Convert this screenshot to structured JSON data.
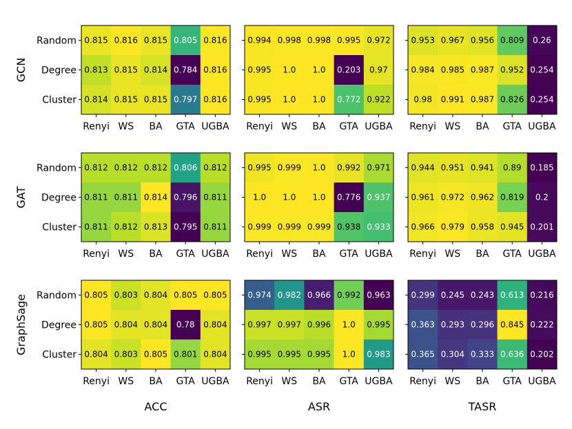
{
  "chart_data": {
    "type": "heatmap",
    "row_groups": [
      "GCN",
      "GAT",
      "GraphSage"
    ],
    "col_groups": [
      "ACC",
      "ASR",
      "TASR"
    ],
    "row_labels": [
      "Random",
      "Degree",
      "Cluster"
    ],
    "col_labels": [
      "Renyi",
      "WS",
      "BA",
      "GTA",
      "UGBA"
    ],
    "colormap": "viridis",
    "grid": false,
    "panels": [
      {
        "model": "GCN",
        "metric": "ACC",
        "values": [
          [
            "0.815",
            "0.816",
            "0.815",
            "0.805",
            "0.816"
          ],
          [
            "0.813",
            "0.815",
            "0.814",
            "0.784",
            "0.816"
          ],
          [
            "0.814",
            "0.815",
            "0.815",
            "0.797",
            "0.816"
          ]
        ]
      },
      {
        "model": "GCN",
        "metric": "ASR",
        "values": [
          [
            "0.994",
            "0.998",
            "0.998",
            "0.995",
            "0.972"
          ],
          [
            "0.995",
            "1.0",
            "1.0",
            "0.203",
            "0.97"
          ],
          [
            "0.995",
            "1.0",
            "1.0",
            "0.772",
            "0.922"
          ]
        ]
      },
      {
        "model": "GCN",
        "metric": "TASR",
        "values": [
          [
            "0.953",
            "0.967",
            "0.956",
            "0.809",
            "0.26"
          ],
          [
            "0.984",
            "0.985",
            "0.987",
            "0.952",
            "0.254"
          ],
          [
            "0.98",
            "0.991",
            "0.987",
            "0.826",
            "0.254"
          ]
        ]
      },
      {
        "model": "GAT",
        "metric": "ACC",
        "values": [
          [
            "0.812",
            "0.812",
            "0.812",
            "0.806",
            "0.812"
          ],
          [
            "0.811",
            "0.811",
            "0.814",
            "0.796",
            "0.811"
          ],
          [
            "0.811",
            "0.812",
            "0.813",
            "0.795",
            "0.811"
          ]
        ]
      },
      {
        "model": "GAT",
        "metric": "ASR",
        "values": [
          [
            "0.995",
            "0.999",
            "1.0",
            "0.992",
            "0.971"
          ],
          [
            "1.0",
            "1.0",
            "1.0",
            "0.776",
            "0.937"
          ],
          [
            "0.999",
            "0.999",
            "0.999",
            "0.938",
            "0.933"
          ]
        ]
      },
      {
        "model": "GAT",
        "metric": "TASR",
        "values": [
          [
            "0.944",
            "0.951",
            "0.941",
            "0.89",
            "0.185"
          ],
          [
            "0.961",
            "0.972",
            "0.962",
            "0.819",
            "0.2"
          ],
          [
            "0.966",
            "0.979",
            "0.958",
            "0.945",
            "0.201"
          ]
        ]
      },
      {
        "model": "GraphSage",
        "metric": "ACC",
        "values": [
          [
            "0.805",
            "0.803",
            "0.804",
            "0.805",
            "0.805"
          ],
          [
            "0.805",
            "0.804",
            "0.804",
            "0.78",
            "0.804"
          ],
          [
            "0.804",
            "0.803",
            "0.805",
            "0.801",
            "0.804"
          ]
        ]
      },
      {
        "model": "GraphSage",
        "metric": "ASR",
        "values": [
          [
            "0.974",
            "0.982",
            "0.966",
            "0.992",
            "0.963"
          ],
          [
            "0.997",
            "0.997",
            "0.996",
            "1.0",
            "0.995"
          ],
          [
            "0.995",
            "0.995",
            "0.995",
            "1.0",
            "0.983"
          ]
        ]
      },
      {
        "model": "GraphSage",
        "metric": "TASR",
        "values": [
          [
            "0.299",
            "0.245",
            "0.243",
            "0.613",
            "0.216"
          ],
          [
            "0.363",
            "0.293",
            "0.296",
            "0.845",
            "0.222"
          ],
          [
            "0.365",
            "0.304",
            "0.333",
            "0.636",
            "0.202"
          ]
        ]
      }
    ]
  }
}
